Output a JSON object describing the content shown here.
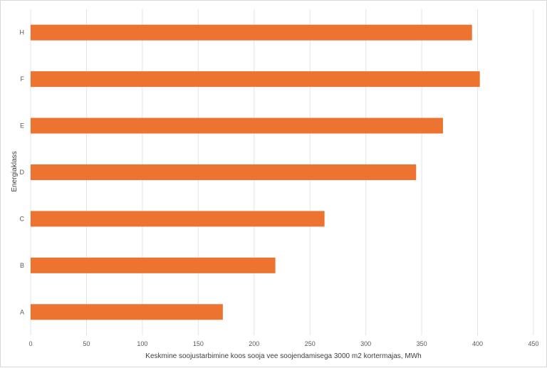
{
  "chart_data": {
    "type": "bar",
    "orientation": "horizontal",
    "categories": [
      "A",
      "B",
      "C",
      "D",
      "E",
      "F",
      "H"
    ],
    "values": [
      172,
      219,
      263,
      345,
      369,
      402,
      395
    ],
    "xlabel": "Keskmine soojustarbimine koos sooja vee soojendamisega 3000 m2 kortermajas, MWh",
    "ylabel": "Energiaklass",
    "xlim": [
      0,
      450
    ],
    "xticks": [
      0,
      50,
      100,
      150,
      200,
      250,
      300,
      350,
      400,
      450
    ],
    "grid": "vertical",
    "bar_color": "#ed7330",
    "grid_color": "#e3e3e3"
  }
}
